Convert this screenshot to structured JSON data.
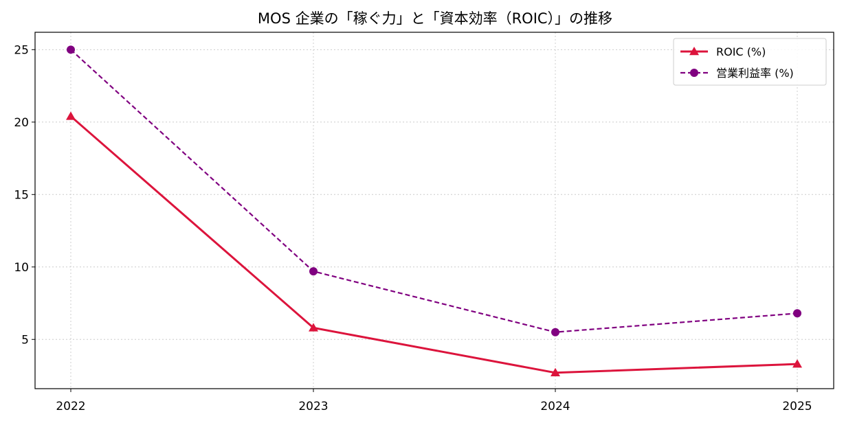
{
  "chart_data": {
    "type": "line",
    "title": "MOS 企業の「稼ぐ力」と「資本効率（ROIC）」の推移",
    "xlabel": "",
    "ylabel": "",
    "categories": [
      "2022",
      "2023",
      "2024",
      "2025"
    ],
    "ylim": [
      1.6,
      26.2
    ],
    "yticks": [
      5,
      10,
      15,
      20,
      25
    ],
    "grid": true,
    "legend_position": "top-right",
    "series": [
      {
        "name": "ROIC (%)",
        "values": [
          20.4,
          5.8,
          2.7,
          3.3
        ],
        "color": "#dc143c",
        "line_style": "solid",
        "marker": "triangle"
      },
      {
        "name": "営業利益率 (%)",
        "values": [
          25.0,
          9.7,
          5.5,
          6.8
        ],
        "color": "#800080",
        "line_style": "dashed",
        "marker": "circle"
      }
    ]
  }
}
